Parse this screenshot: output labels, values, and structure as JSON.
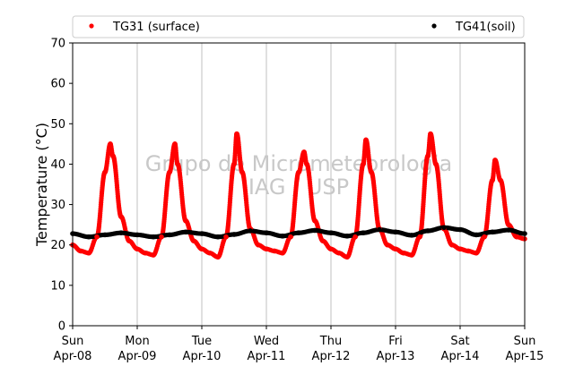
{
  "chart_data": {
    "type": "scatter",
    "title": "",
    "xlabel": "",
    "ylabel": "Temperature (°C)",
    "ylim": [
      0,
      70
    ],
    "yticks": [
      0,
      10,
      20,
      30,
      40,
      50,
      60,
      70
    ],
    "xlim": [
      "2018-04-08",
      "2018-04-15"
    ],
    "xticks": [
      {
        "date": "2018-04-08",
        "day": "Sun",
        "label": "Apr-08"
      },
      {
        "date": "2018-04-09",
        "day": "Mon",
        "label": "Apr-09"
      },
      {
        "date": "2018-04-10",
        "day": "Tue",
        "label": "Apr-10"
      },
      {
        "date": "2018-04-11",
        "day": "Wed",
        "label": "Apr-11"
      },
      {
        "date": "2018-04-12",
        "day": "Thu",
        "label": "Apr-12"
      },
      {
        "date": "2018-04-13",
        "day": "Fri",
        "label": "Apr-13"
      },
      {
        "date": "2018-04-14",
        "day": "Sat",
        "label": "Apr-14"
      },
      {
        "date": "2018-04-15",
        "day": "Sun",
        "label": "Apr-15"
      }
    ],
    "grid": "vertical",
    "legend_position": "top",
    "watermark": [
      "Grupo de Micrometeorologia",
      "IAG / USP"
    ],
    "series": [
      {
        "name": "TG31 (surface)",
        "color": "#ff0000",
        "marker": "circle",
        "x": [
          "2018-04-08 00:00",
          "2018-04-08 03:00",
          "2018-04-08 06:00",
          "2018-04-08 09:00",
          "2018-04-08 12:00",
          "2018-04-08 14:00",
          "2018-04-08 15:00",
          "2018-04-08 18:00",
          "2018-04-08 21:00",
          "2018-04-09 00:00",
          "2018-04-09 03:00",
          "2018-04-09 06:00",
          "2018-04-09 09:00",
          "2018-04-09 12:00",
          "2018-04-09 14:00",
          "2018-04-09 15:00",
          "2018-04-09 18:00",
          "2018-04-09 21:00",
          "2018-04-10 00:00",
          "2018-04-10 03:00",
          "2018-04-10 06:00",
          "2018-04-10 09:00",
          "2018-04-10 12:00",
          "2018-04-10 13:00",
          "2018-04-10 15:00",
          "2018-04-10 18:00",
          "2018-04-10 21:00",
          "2018-04-11 00:00",
          "2018-04-11 03:00",
          "2018-04-11 06:00",
          "2018-04-11 09:00",
          "2018-04-11 12:00",
          "2018-04-11 14:00",
          "2018-04-11 15:00",
          "2018-04-11 18:00",
          "2018-04-11 21:00",
          "2018-04-12 00:00",
          "2018-04-12 03:00",
          "2018-04-12 06:00",
          "2018-04-12 09:00",
          "2018-04-12 12:00",
          "2018-04-12 13:00",
          "2018-04-12 15:00",
          "2018-04-12 18:00",
          "2018-04-12 21:00",
          "2018-04-13 00:00",
          "2018-04-13 03:00",
          "2018-04-13 06:00",
          "2018-04-13 09:00",
          "2018-04-13 12:00",
          "2018-04-13 13:00",
          "2018-04-13 15:00",
          "2018-04-13 18:00",
          "2018-04-13 21:00",
          "2018-04-14 00:00",
          "2018-04-14 03:00",
          "2018-04-14 06:00",
          "2018-04-14 09:00",
          "2018-04-14 12:00",
          "2018-04-14 13:00",
          "2018-04-14 15:00",
          "2018-04-14 18:00",
          "2018-04-14 21:00",
          "2018-04-15 00:00"
        ],
        "y": [
          20,
          18.5,
          18,
          22,
          38,
          45,
          42,
          27,
          21,
          19,
          18,
          17.5,
          22,
          38,
          45,
          40,
          26,
          21,
          19,
          18,
          17,
          22,
          40,
          47.5,
          38,
          24,
          20,
          19,
          18.5,
          18,
          22,
          38,
          43,
          40,
          26,
          21,
          19,
          18,
          17,
          22,
          40,
          46,
          38,
          24,
          20,
          19,
          18,
          17.5,
          22,
          42,
          47.5,
          40,
          24,
          20,
          19,
          18.5,
          18,
          22,
          36,
          41,
          36,
          25,
          22,
          21.5
        ]
      },
      {
        "name": "TG41(soil)",
        "color": "#000000",
        "marker": "circle",
        "x": [
          "2018-04-08 00:00",
          "2018-04-08 06:00",
          "2018-04-08 12:00",
          "2018-04-08 18:00",
          "2018-04-09 00:00",
          "2018-04-09 06:00",
          "2018-04-09 12:00",
          "2018-04-09 18:00",
          "2018-04-10 00:00",
          "2018-04-10 06:00",
          "2018-04-10 12:00",
          "2018-04-10 18:00",
          "2018-04-11 00:00",
          "2018-04-11 06:00",
          "2018-04-11 12:00",
          "2018-04-11 18:00",
          "2018-04-12 00:00",
          "2018-04-12 06:00",
          "2018-04-12 12:00",
          "2018-04-12 18:00",
          "2018-04-13 00:00",
          "2018-04-13 06:00",
          "2018-04-13 12:00",
          "2018-04-13 18:00",
          "2018-04-14 00:00",
          "2018-04-14 06:00",
          "2018-04-14 12:00",
          "2018-04-14 18:00",
          "2018-04-15 00:00"
        ],
        "y": [
          22.8,
          22,
          22.5,
          23,
          22.5,
          22,
          22.5,
          23.2,
          22.8,
          22,
          22.6,
          23.5,
          23,
          22.2,
          23,
          23.6,
          23,
          22.2,
          23,
          23.8,
          23.2,
          22.4,
          23.5,
          24.3,
          23.8,
          22.5,
          23.2,
          23.7,
          22.8
        ]
      }
    ]
  }
}
